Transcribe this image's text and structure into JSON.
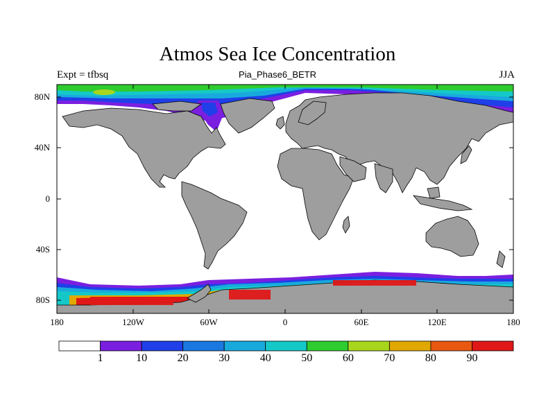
{
  "header": {
    "title": "Atmos Sea Ice Concentration",
    "subtitle": "Pia_Phase6_BETR",
    "left_label": "Expt = tfbsq",
    "right_label": "JJA"
  },
  "map": {
    "projection": "cylindrical equidistant",
    "lon_range": [
      -180,
      180
    ],
    "lat_range": [
      -90,
      90
    ],
    "land_color": "#9e9e9e",
    "ocean_color": "#ffffff",
    "lat_ticks": [
      "80N",
      "40N",
      "0",
      "40S",
      "80S"
    ],
    "lon_ticks": [
      "180",
      "120W",
      "60W",
      "0",
      "60E",
      "120E",
      "180"
    ]
  },
  "colorbar": {
    "labels": [
      "1",
      "10",
      "20",
      "30",
      "40",
      "50",
      "60",
      "70",
      "80",
      "90"
    ],
    "colors": [
      "#ffffff",
      "#7a1fe0",
      "#1f3fe8",
      "#1a78e0",
      "#19aadd",
      "#15c8c8",
      "#2ecc2e",
      "#a8d61c",
      "#e0a800",
      "#e85810",
      "#e01818"
    ]
  }
}
